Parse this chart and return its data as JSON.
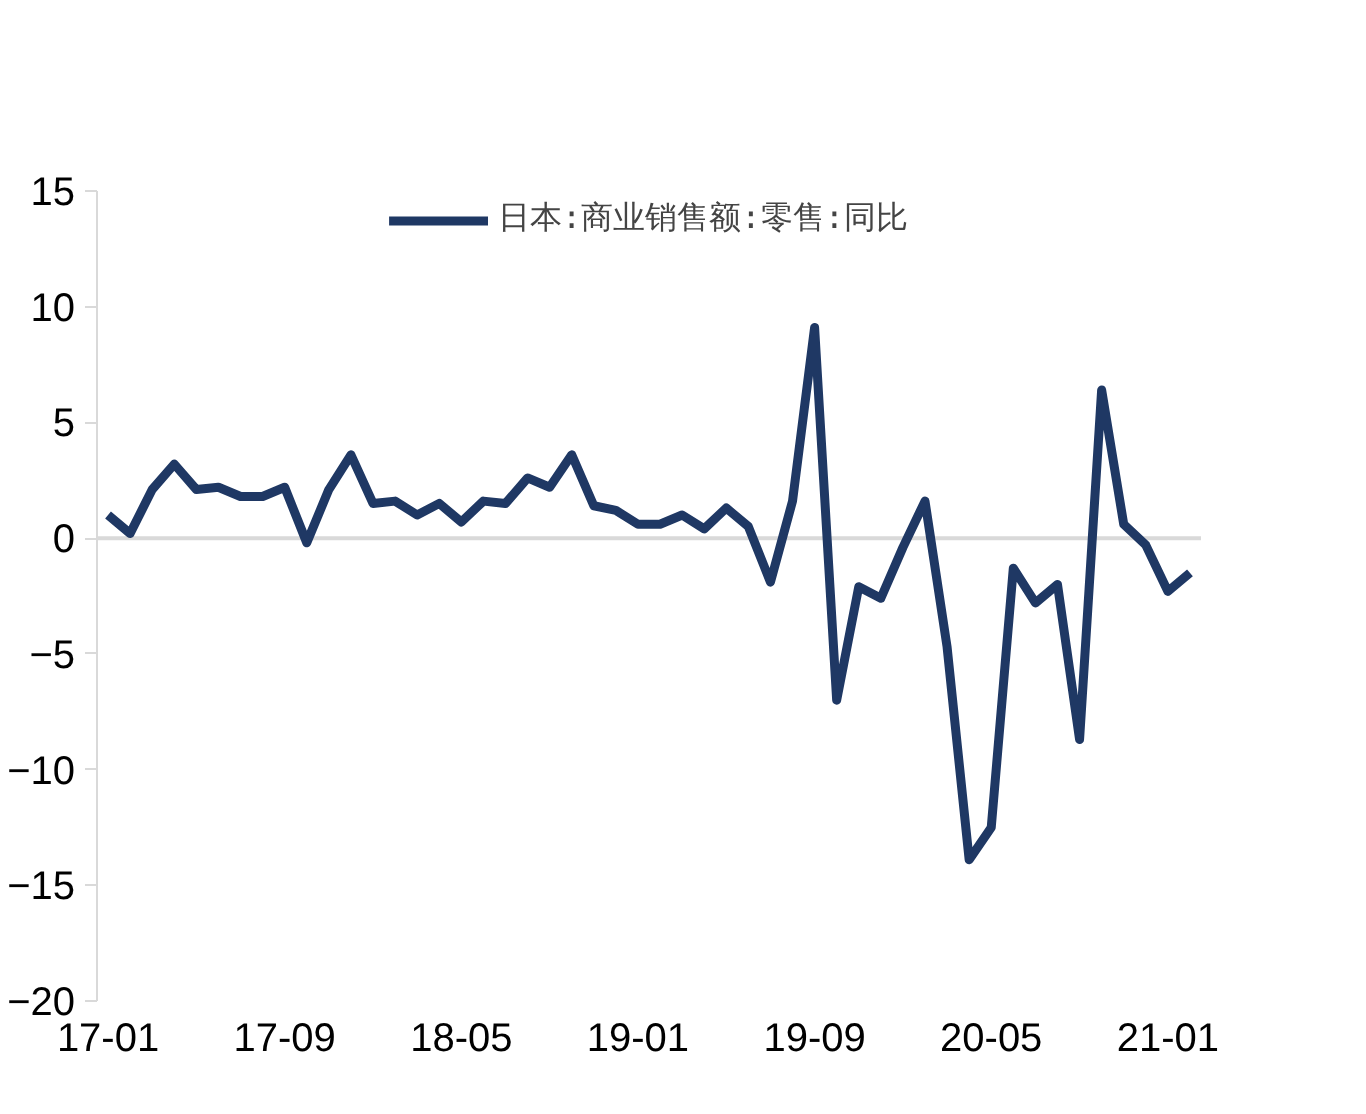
{
  "chart_data": {
    "type": "line",
    "categories": [
      "17-01",
      null,
      null,
      null,
      null,
      null,
      null,
      null,
      "17-09",
      null,
      null,
      null,
      null,
      null,
      null,
      null,
      "18-05",
      null,
      null,
      null,
      null,
      null,
      null,
      null,
      "19-01",
      null,
      null,
      null,
      null,
      null,
      null,
      null,
      "19-09",
      null,
      null,
      null,
      null,
      null,
      null,
      null,
      "20-05",
      null,
      null,
      null,
      null,
      null,
      null,
      null,
      "21-01",
      null
    ],
    "series": [
      {
        "name": "日本:商业销售额:零售:同比",
        "color": "#1f3864",
        "values": [
          1.0,
          0.2,
          2.1,
          3.2,
          2.1,
          2.2,
          1.8,
          1.8,
          2.2,
          -0.2,
          2.1,
          3.6,
          1.5,
          1.6,
          1.0,
          1.5,
          0.7,
          1.6,
          1.5,
          2.6,
          2.2,
          3.6,
          1.4,
          1.2,
          0.6,
          0.6,
          1.0,
          0.4,
          1.3,
          0.5,
          -1.9,
          1.6,
          9.1,
          -7.0,
          -2.1,
          -2.6,
          -0.4,
          1.6,
          -4.7,
          -13.9,
          -12.5,
          -1.3,
          -2.8,
          -2.0,
          -8.7,
          6.4,
          0.6,
          -0.3,
          -2.3,
          -1.5
        ]
      }
    ],
    "ylim": [
      -20,
      15
    ],
    "yticks": [
      -20,
      -15,
      -10,
      -5,
      0,
      5,
      10,
      15
    ],
    "ref_lines": [
      {
        "axis": "y",
        "value": 0,
        "color": "#d9d9d9"
      }
    ],
    "grid": false,
    "legend": "top",
    "line_style": "solid"
  }
}
